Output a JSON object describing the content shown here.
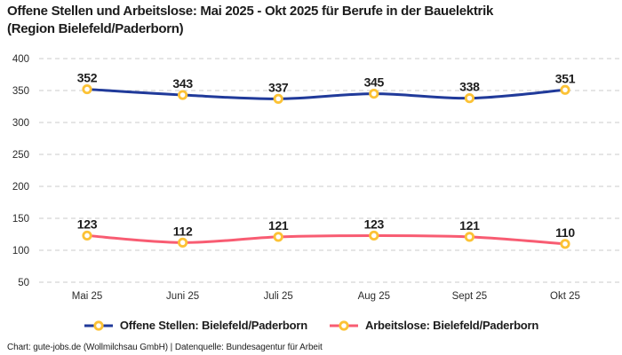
{
  "header": {
    "title": "Offene Stellen und Arbeitslose: Mai 2025 - Okt 2025 für Berufe in der Bauelektrik\n(Region Bielefeld/Paderborn)"
  },
  "chart_data": {
    "type": "line",
    "categories": [
      "Mai 25",
      "Juni 25",
      "Juli 25",
      "Aug 25",
      "Sept 25",
      "Okt 25"
    ],
    "series": [
      {
        "name": "Offene Stellen: Bielefeld/Paderborn",
        "values": [
          352,
          343,
          337,
          345,
          338,
          351
        ],
        "color": "#203a9a"
      },
      {
        "name": "Arbeitslose: Bielefeld/Paderborn",
        "values": [
          123,
          112,
          121,
          123,
          121,
          110
        ],
        "color": "#f85c72"
      }
    ],
    "marker_color": "#fcc235",
    "marker_fill": "#ffffff",
    "grid_color": "#cbcbcb",
    "label_color": "#1c1c1c",
    "ylim": [
      50,
      400
    ],
    "ytick_step": 50,
    "grid": "dashed horizontal",
    "line_style": "smooth",
    "show_data_labels": true,
    "legend_position": "bottom"
  },
  "footer": {
    "credit": "Chart: gute-jobs.de (Wollmilchsau GmbH) | Datenquelle: Bundesagentur für Arbeit"
  }
}
